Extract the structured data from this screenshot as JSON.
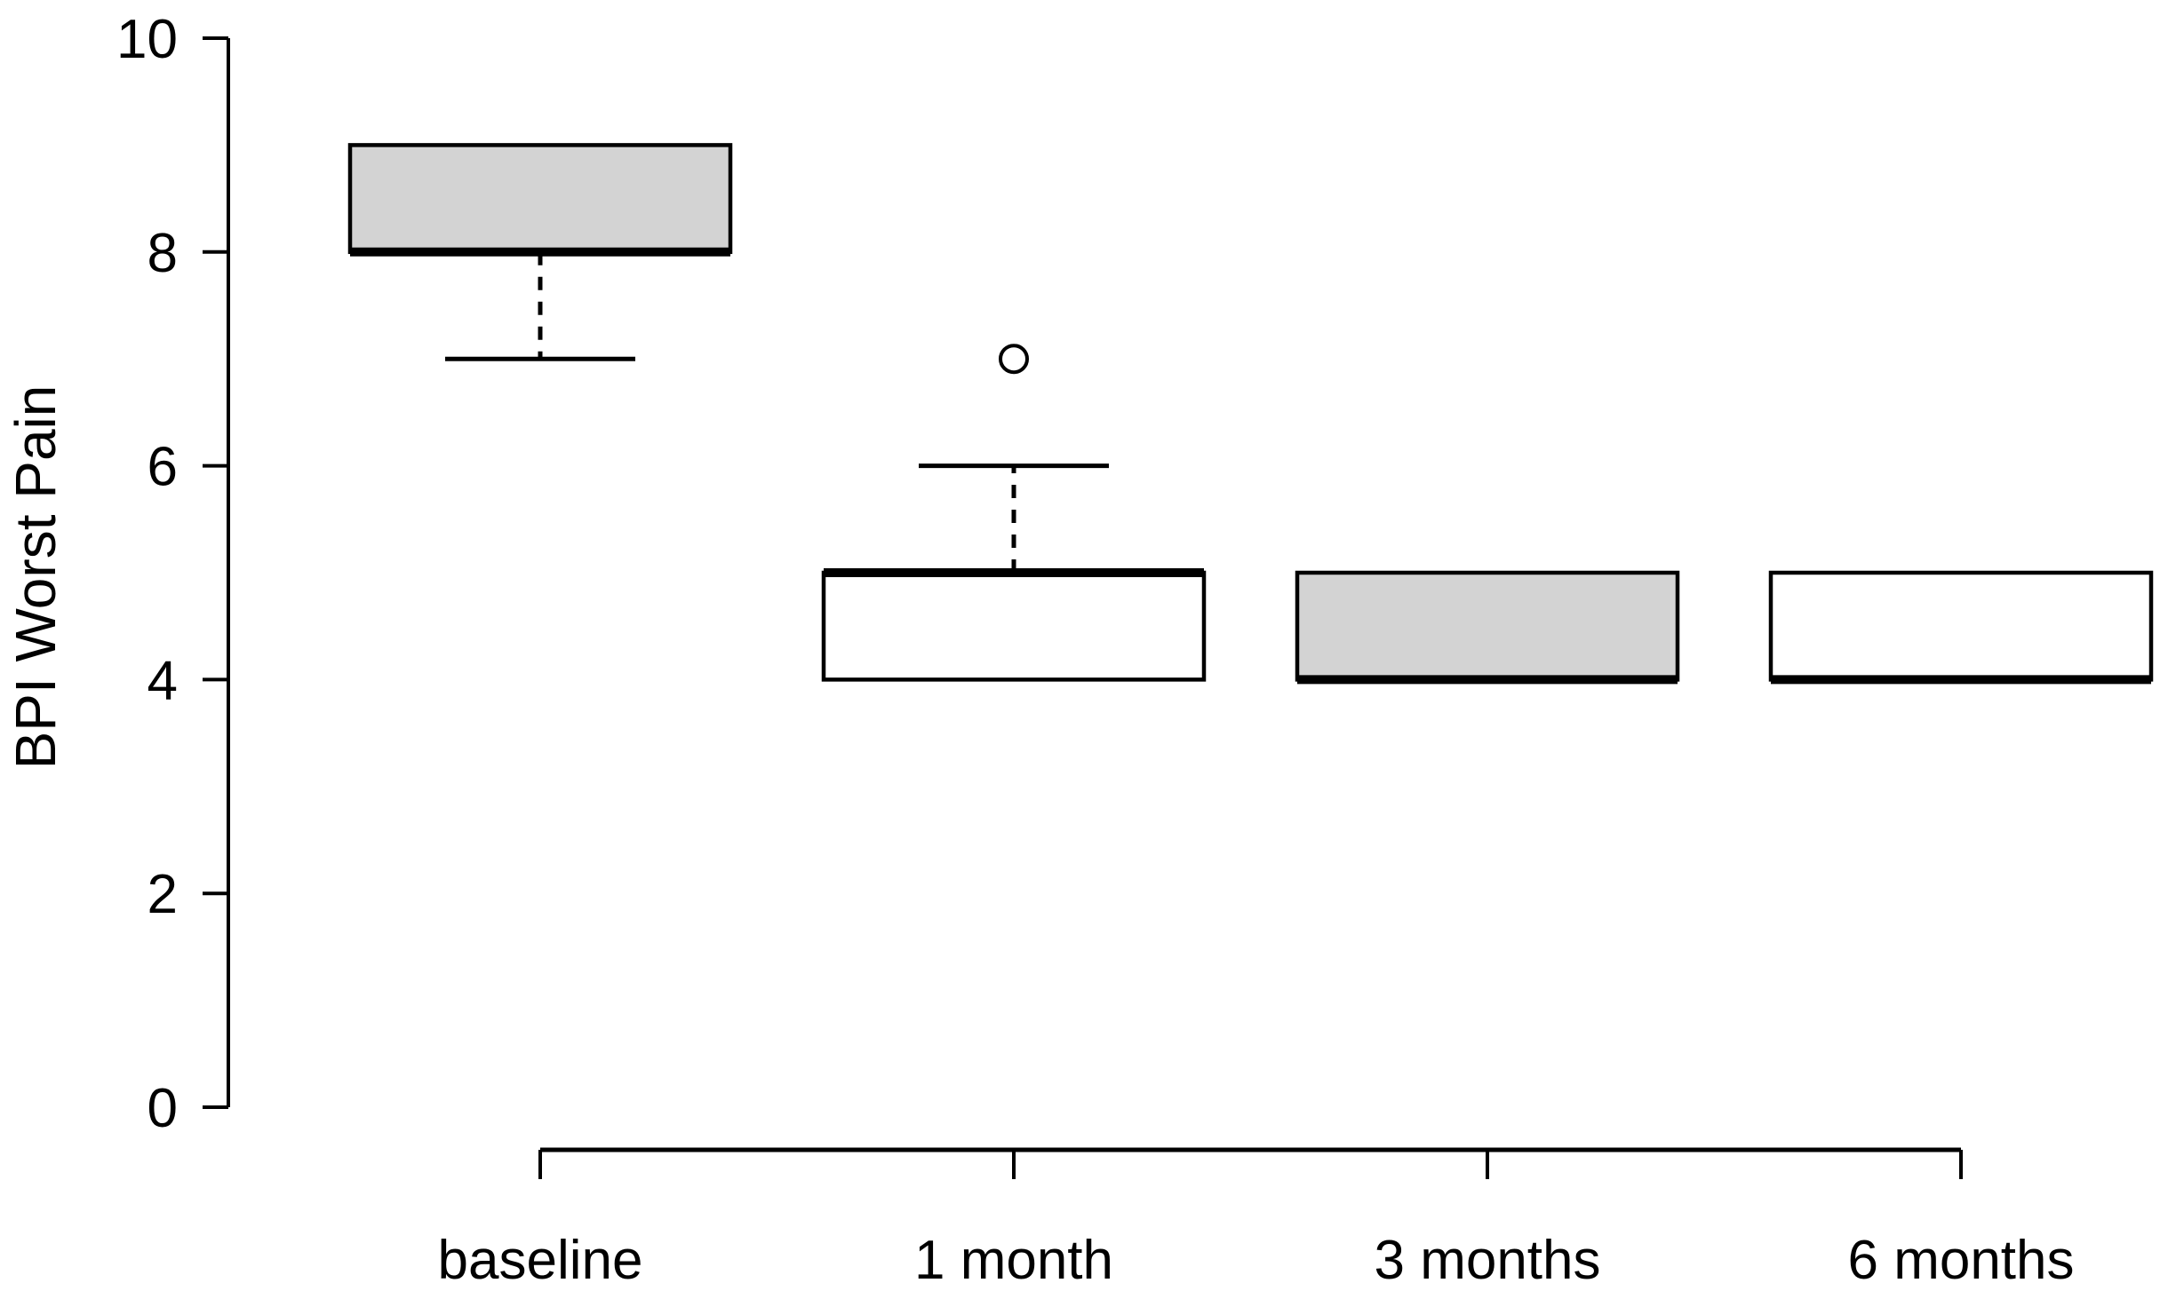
{
  "chart_data": {
    "type": "boxplot",
    "title": "",
    "xlabel": "",
    "ylabel": "BPI Worst Pain",
    "ylim": [
      0,
      10
    ],
    "y_ticks": [
      0,
      2,
      4,
      6,
      8,
      10
    ],
    "grid": false,
    "legend": null,
    "categories": [
      "baseline",
      "1 month",
      "3 months",
      "6 months"
    ],
    "series": [
      {
        "label": "baseline",
        "q1": 8,
        "median": 8,
        "q3": 9,
        "whisker_low": 7,
        "whisker_high": 9,
        "outliers": [],
        "fill": "#d3d3d3"
      },
      {
        "label": "1 month",
        "q1": 4,
        "median": 5,
        "q3": 5,
        "whisker_low": 4,
        "whisker_high": 6,
        "outliers": [
          7
        ],
        "fill": "#ffffff"
      },
      {
        "label": "3 months",
        "q1": 4,
        "median": 4,
        "q3": 5,
        "whisker_low": 4,
        "whisker_high": 5,
        "outliers": [],
        "fill": "#d3d3d3"
      },
      {
        "label": "6 months",
        "q1": 4,
        "median": 4,
        "q3": 5,
        "whisker_low": 4,
        "whisker_high": 5,
        "outliers": [],
        "fill": "#ffffff"
      }
    ],
    "colors": {
      "stroke": "#000000",
      "box_fill_gray": "#d3d3d3",
      "box_fill_white": "#ffffff",
      "background": "#ffffff"
    }
  }
}
